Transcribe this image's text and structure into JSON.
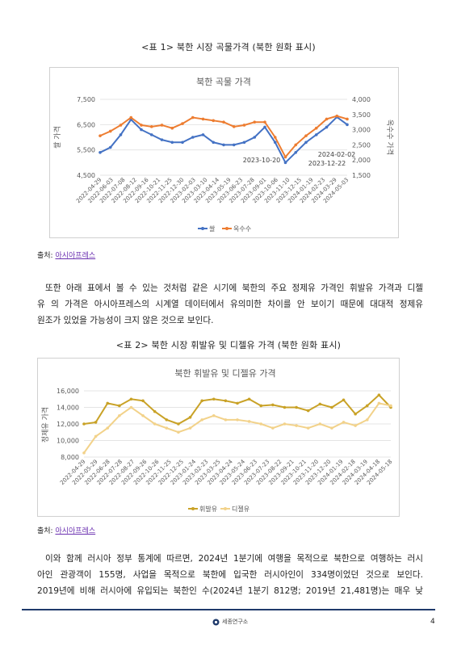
{
  "table1_caption": "<표 1> 북한 시장 곡물가격 (북한 원화 표시)",
  "chart1": {
    "chart_data": {
      "type": "line",
      "title": "북한 곡물 가격",
      "ylabel_left": "쌀 가격",
      "ylabel_right": "옥수수 가격",
      "y_left_ticks": [
        "7,500",
        "6,500",
        "5,500",
        "4,500"
      ],
      "y_left_lim": [
        4500,
        7500
      ],
      "y_right_ticks": [
        "4,000",
        "3,500",
        "3,000",
        "2,500",
        "2,000",
        "1,500"
      ],
      "y_right_lim": [
        1500,
        4000
      ],
      "x_tick_labels": [
        "2022-04-29",
        "2022-06-03",
        "2022-07-08",
        "2022-08-12",
        "2022-09-16",
        "2022-10-21",
        "2022-11-25",
        "2022-12-30",
        "2023-02-03",
        "2023-03-10",
        "2023-04-14",
        "2023-05-19",
        "2023-06-23",
        "2023-07-28",
        "2023-09-01",
        "2023-10-06",
        "2023-11-10",
        "2023-12-15",
        "2024-01-19",
        "2024-02-23",
        "2024-03-29",
        "2024-05-03"
      ],
      "annotations": [
        "2023-10-20",
        "2024-02-02",
        "2023-12-22"
      ],
      "series": [
        {
          "name": "쌀",
          "axis": "left",
          "color": "#4472c4",
          "values": [
            5400,
            5600,
            6100,
            6700,
            6300,
            6100,
            5900,
            5800,
            5800,
            6000,
            6100,
            5800,
            5700,
            5700,
            5800,
            6000,
            6400,
            5800,
            5000,
            5400,
            5800,
            6100,
            6400,
            6800,
            6500
          ]
        },
        {
          "name": "옥수수",
          "axis": "right",
          "color": "#ed7d31",
          "values": [
            2800,
            2950,
            3150,
            3400,
            3150,
            3100,
            3150,
            3050,
            3200,
            3400,
            3350,
            3300,
            3250,
            3100,
            3150,
            3250,
            3250,
            2750,
            2100,
            2500,
            2800,
            3050,
            3350,
            3450,
            3350
          ]
        }
      ]
    }
  },
  "source1_label": "출처: ",
  "source1_link": "아시아프레스",
  "para1_lines": [
    "또한 아래 표에서 볼 수 있는 것처럼 같은 시기에 북한의 주요 정제유 가격인 휘발유 가격과 디젤",
    "유 의 가격은 아시아프레스의 시계열 데이터에서 유의미한 차이를 안 보이기 때문에 대대적 정제유",
    "원조가 있었을 가능성이 크지 않은 것으로 보인다."
  ],
  "table2_caption": "<표 2> 북한 시장 휘발유 및 디젤유 가격 (북한 원화 표시)",
  "chart2": {
    "chart_data": {
      "type": "line",
      "title": "북한 휘발유 및 디젤유 가격",
      "ylabel": "정제유 가격",
      "y_ticks": [
        "16,000",
        "14,000",
        "12,000",
        "10,000",
        "8,000"
      ],
      "ylim": [
        8000,
        16000
      ],
      "x_tick_labels": [
        "2022-04-29",
        "2022-05-29",
        "2022-06-28",
        "2022-07-28",
        "2022-08-27",
        "2022-09-26",
        "2022-10-26",
        "2022-11-25",
        "2022-12-25",
        "2023-01-24",
        "2023-02-23",
        "2023-03-25",
        "2023-04-24",
        "2023-05-24",
        "2023-06-23",
        "2023-07-23",
        "2023-08-22",
        "2023-09-21",
        "2023-10-21",
        "2023-11-20",
        "2023-12-20",
        "2024-01-19",
        "2024-02-18",
        "2024-03-19",
        "2024-04-18",
        "2024-05-18"
      ],
      "series": [
        {
          "name": "휘발유",
          "color": "#c9a227",
          "values": [
            12000,
            12200,
            14500,
            14200,
            15000,
            14800,
            13500,
            12500,
            12000,
            12800,
            14800,
            15000,
            14800,
            14500,
            15000,
            14200,
            14300,
            14000,
            14000,
            13600,
            14400,
            14000,
            14900,
            13200,
            14200,
            15500,
            14000
          ]
        },
        {
          "name": "디젤유",
          "color": "#f2d28a",
          "values": [
            8500,
            10500,
            11500,
            13000,
            14000,
            13000,
            12000,
            11500,
            11000,
            11500,
            12500,
            13000,
            12500,
            12500,
            12300,
            12000,
            11500,
            12000,
            11800,
            11500,
            12000,
            11500,
            12200,
            11800,
            12500,
            14500,
            14200
          ]
        }
      ]
    }
  },
  "source2_label": "출처: ",
  "source2_link": "아시아프레스",
  "para2_lines": [
    "이와 함께 러시아 정부 통계에 따르면, 2024년 1분기에 여행을 목적으로 북한으로 여행하는 러시",
    "아인 관광객이 155명, 사업을 목적으로 북한에 입국한 러시아인이 334명이었던 것으로 보인다.",
    "2019년에 비해 러시아에 유입되는 북한인 수(2024년 1분기 812명; 2019년 21,481명)는 매우 낮"
  ],
  "footer": {
    "logo_text": "세종연구소",
    "page_number": "4"
  }
}
